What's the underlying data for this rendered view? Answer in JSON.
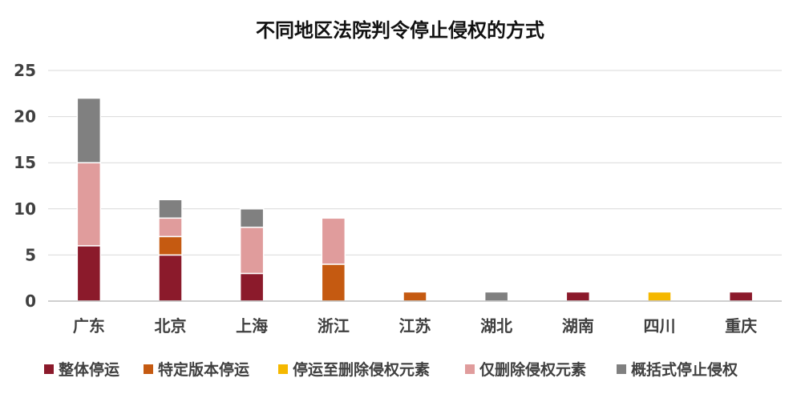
{
  "chart_data": {
    "type": "bar",
    "stacked": true,
    "title": "不同地区法院判令停止侵权的方式",
    "xlabel": "",
    "ylabel": "",
    "ylim": [
      0,
      25
    ],
    "yticks": [
      0,
      5,
      10,
      15,
      20,
      25
    ],
    "grid": true,
    "legend_position": "bottom",
    "categories": [
      "广东",
      "北京",
      "上海",
      "浙江",
      "江苏",
      "湖北",
      "湖南",
      "四川",
      "重庆"
    ],
    "series": [
      {
        "name": "整体停运",
        "color": "#8B1A2B",
        "values": [
          6,
          5,
          3,
          0,
          0,
          0,
          1,
          0,
          1
        ]
      },
      {
        "name": "特定版本停运",
        "color": "#C55A11",
        "values": [
          0,
          2,
          0,
          4,
          1,
          0,
          0,
          0,
          0
        ]
      },
      {
        "name": "停运至删除侵权元素",
        "color": "#F5B800",
        "values": [
          0,
          0,
          0,
          0,
          0,
          0,
          0,
          1,
          0
        ]
      },
      {
        "name": "仅删除侵权元素",
        "color": "#E09C9C",
        "values": [
          9,
          2,
          5,
          5,
          0,
          0,
          0,
          0,
          0
        ]
      },
      {
        "name": "概括式停止侵权",
        "color": "#808080",
        "values": [
          7,
          2,
          2,
          0,
          0,
          1,
          0,
          0,
          0
        ]
      }
    ]
  }
}
